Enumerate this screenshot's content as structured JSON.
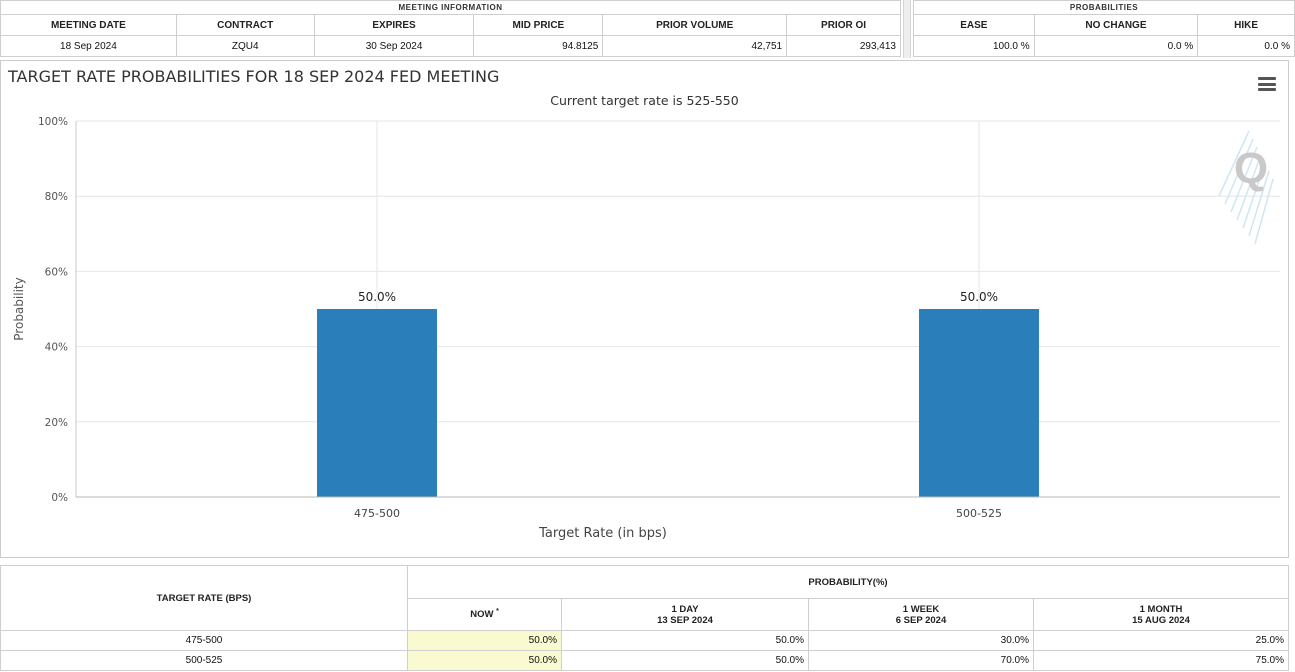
{
  "meeting_info": {
    "caption": "MEETING INFORMATION",
    "headers": [
      "MEETING DATE",
      "CONTRACT",
      "EXPIRES",
      "MID PRICE",
      "PRIOR VOLUME",
      "PRIOR OI"
    ],
    "row": [
      "18 Sep 2024",
      "ZQU4",
      "30 Sep 2024",
      "94.8125",
      "42,751",
      "293,413"
    ]
  },
  "probabilities_info": {
    "caption": "PROBABILITIES",
    "headers": [
      "EASE",
      "NO CHANGE",
      "HIKE"
    ],
    "row": [
      "100.0 %",
      "0.0 %",
      "0.0 %"
    ]
  },
  "chart": {
    "title": "TARGET RATE PROBABILITIES FOR 18 SEP 2024 FED MEETING",
    "subtitle": "Current target rate is 525-550",
    "watermark": "Q",
    "menu_icon": "hamburger-menu-icon"
  },
  "chart_data": {
    "type": "bar",
    "categories": [
      "475-500",
      "500-525"
    ],
    "values": [
      50.0,
      50.0
    ],
    "data_labels": [
      "50.0%",
      "50.0%"
    ],
    "xlabel": "Target Rate (in bps)",
    "ylabel": "Probability",
    "ylim": [
      0,
      100
    ],
    "yticks": [
      "0%",
      "20%",
      "40%",
      "60%",
      "80%",
      "100%"
    ],
    "grid": true,
    "bar_color": "#2a7fba"
  },
  "prob_table": {
    "target_rate_header": "TARGET RATE (BPS)",
    "probability_header": "PROBABILITY(%)",
    "columns": [
      {
        "label": "NOW",
        "sub": "",
        "mark": "*"
      },
      {
        "label": "1 DAY",
        "sub": "13 SEP 2024"
      },
      {
        "label": "1 WEEK",
        "sub": "6 SEP 2024"
      },
      {
        "label": "1 MONTH",
        "sub": "15 AUG 2024"
      }
    ],
    "rows": [
      {
        "rate": "475-500",
        "values": [
          "50.0%",
          "50.0%",
          "30.0%",
          "25.0%"
        ]
      },
      {
        "rate": "500-525",
        "values": [
          "50.0%",
          "50.0%",
          "70.0%",
          "75.0%"
        ]
      }
    ]
  }
}
